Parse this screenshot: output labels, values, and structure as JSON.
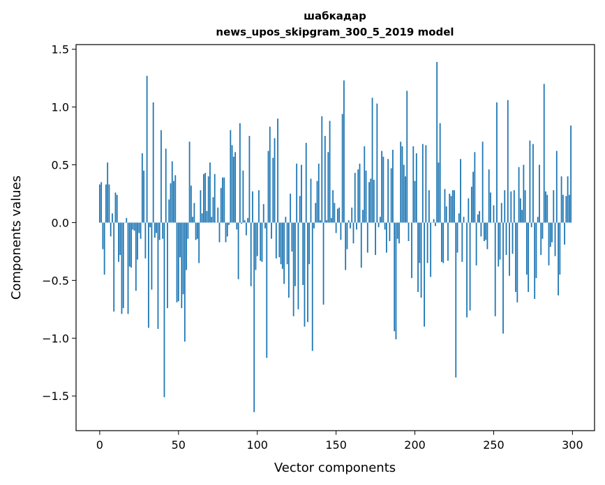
{
  "chart_data": {
    "type": "bar",
    "title": "шабкадар",
    "subtitle": "news_upos_skipgram_300_5_2019 model",
    "xlabel": "Vector components",
    "ylabel": "Components values",
    "xlim": [
      -15,
      314
    ],
    "ylim": [
      -1.8,
      1.54
    ],
    "xticks": [
      0,
      50,
      100,
      150,
      200,
      250,
      300
    ],
    "xtick_labels": [
      "0",
      "50",
      "100",
      "150",
      "200",
      "250",
      "300"
    ],
    "yticks": [
      -1.5,
      -1.0,
      -0.5,
      0.0,
      0.5,
      1.0,
      1.5
    ],
    "ytick_labels": [
      "−1.5",
      "−1.0",
      "−0.5",
      "0.0",
      "0.5",
      "1.0",
      "1.5"
    ],
    "grid": false,
    "color": "#1f77b4",
    "values": [
      0.33,
      0.35,
      -0.23,
      -0.45,
      0.33,
      0.52,
      0.33,
      -0.12,
      0.08,
      -0.77,
      0.26,
      0.24,
      -0.34,
      -0.28,
      -0.79,
      -0.74,
      0.0,
      0.04,
      -0.79,
      -0.38,
      -0.39,
      -0.06,
      -0.07,
      -0.59,
      -0.32,
      -0.09,
      -0.14,
      0.6,
      0.45,
      -0.31,
      1.27,
      -0.91,
      -0.04,
      -0.58,
      1.04,
      -0.13,
      -0.09,
      -0.92,
      -0.15,
      0.8,
      -0.14,
      -1.51,
      0.64,
      -0.74,
      0.2,
      0.34,
      0.53,
      0.36,
      0.41,
      -0.69,
      -0.68,
      -0.3,
      -0.74,
      -0.62,
      -1.03,
      -0.41,
      -0.14,
      0.7,
      0.32,
      0.05,
      0.17,
      -0.15,
      -0.14,
      -0.35,
      0.28,
      0.08,
      0.42,
      0.43,
      0.1,
      0.4,
      0.52,
      0.05,
      0.22,
      0.42,
      0.0,
      0.13,
      -0.17,
      0.3,
      0.39,
      0.39,
      -0.17,
      -0.12,
      -0.02,
      0.8,
      0.67,
      0.57,
      0.61,
      -0.06,
      -0.49,
      0.86,
      -0.01,
      0.45,
      0.02,
      -0.11,
      0.04,
      0.75,
      -0.55,
      0.27,
      -1.64,
      -0.41,
      -0.29,
      0.28,
      -0.33,
      -0.34,
      0.16,
      -0.05,
      -1.17,
      0.62,
      0.83,
      -0.14,
      0.56,
      0.73,
      -0.31,
      0.9,
      -0.3,
      -0.36,
      -0.4,
      -0.53,
      0.05,
      -0.36,
      -0.65,
      0.25,
      -0.25,
      -0.81,
      -0.55,
      0.51,
      -0.75,
      0.23,
      0.5,
      -0.54,
      -0.9,
      0.69,
      -0.86,
      -0.36,
      0.38,
      -1.11,
      -0.05,
      0.17,
      0.36,
      0.51,
      0.02,
      0.92,
      -0.71,
      0.75,
      0.02,
      0.61,
      0.88,
      0.04,
      0.28,
      0.17,
      -0.09,
      0.12,
      0.13,
      -0.15,
      0.94,
      1.23,
      -0.41,
      -0.23,
      0.02,
      -0.05,
      0.13,
      -0.18,
      0.43,
      -0.06,
      0.46,
      0.51,
      -0.39,
      0.11,
      0.66,
      0.45,
      -0.26,
      0.35,
      0.38,
      1.08,
      0.37,
      -0.28,
      1.03,
      -0.04,
      0.05,
      0.62,
      0.57,
      -0.06,
      -0.26,
      0.55,
      -0.16,
      0.47,
      0.63,
      -0.94,
      -1.01,
      -0.14,
      -0.18,
      0.7,
      0.66,
      0.5,
      0.4,
      1.14,
      -0.16,
      0.0,
      -0.48,
      0.66,
      0.36,
      0.6,
      -0.6,
      -0.35,
      -0.65,
      0.68,
      -0.9,
      0.67,
      -0.35,
      0.28,
      -0.47,
      0.0,
      0.03,
      -0.03,
      1.39,
      0.52,
      0.86,
      -0.34,
      -0.35,
      0.29,
      0.14,
      -0.33,
      0.25,
      0.23,
      0.28,
      0.28,
      -1.34,
      -0.26,
      0.08,
      0.55,
      -0.34,
      0.05,
      0.0,
      -0.82,
      0.21,
      -0.76,
      0.31,
      0.44,
      0.61,
      -0.37,
      0.07,
      0.1,
      -0.12,
      0.7,
      -0.16,
      -0.15,
      -0.23,
      0.46,
      0.26,
      0.0,
      0.15,
      -0.81,
      1.04,
      -0.38,
      -0.32,
      0.17,
      -0.96,
      0.28,
      -0.28,
      1.06,
      -0.46,
      0.27,
      -0.27,
      0.28,
      -0.6,
      -0.69,
      0.48,
      0.21,
      0.11,
      0.5,
      0.28,
      -0.45,
      -0.6,
      0.71,
      -0.04,
      0.68,
      -0.66,
      -0.48,
      0.05,
      0.5,
      -0.28,
      -0.14,
      1.2,
      0.27,
      0.24,
      -0.37,
      -0.21,
      -0.17,
      0.28,
      -0.29,
      0.62,
      -0.63,
      -0.45,
      0.4,
      0.24,
      -0.19,
      0.23,
      0.4,
      0.24,
      0.84
    ]
  }
}
